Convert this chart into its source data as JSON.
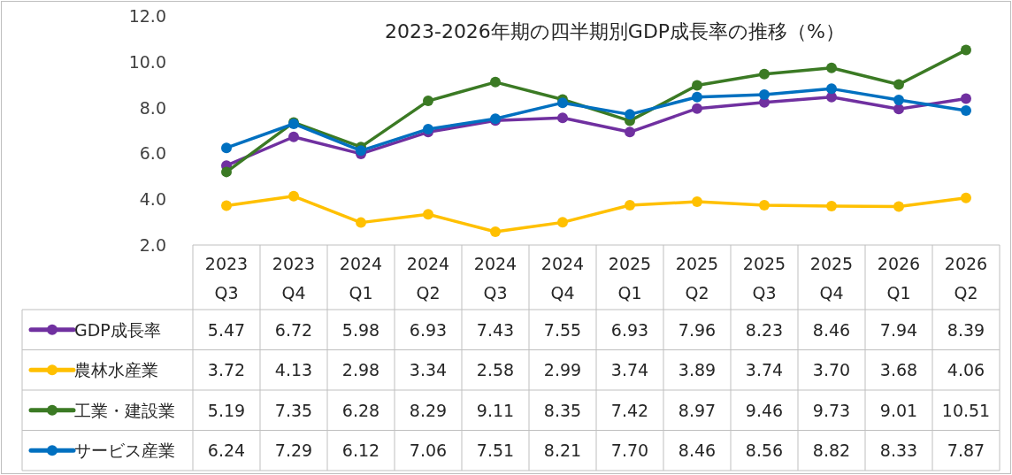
{
  "chart_data": {
    "type": "line",
    "title": "2023-2026年期の四半期別GDP成長率の推移（%）",
    "categories": [
      "2023 Q3",
      "2023 Q4",
      "2024 Q1",
      "2024 Q2",
      "2024 Q3",
      "2024 Q4",
      "2025 Q1",
      "2025 Q2",
      "2025 Q3",
      "2025 Q4",
      "2026 Q1",
      "2026 Q2"
    ],
    "ylim": [
      2,
      12
    ],
    "yticks": [
      {
        "value": 2,
        "label": "2.0"
      },
      {
        "value": 4,
        "label": "4.0"
      },
      {
        "value": 6,
        "label": "6.0"
      },
      {
        "value": 8,
        "label": "8.0"
      },
      {
        "value": 10,
        "label": "10.0"
      },
      {
        "value": 12,
        "label": "12.0"
      }
    ],
    "grid": false,
    "marker": "circle",
    "line_style": "solid",
    "legend": "bottom left",
    "series": [
      {
        "name": "GDP成長率",
        "color": "#7030a0",
        "values": [
          5.47,
          6.72,
          5.98,
          6.93,
          7.43,
          7.55,
          6.93,
          7.96,
          8.23,
          8.46,
          7.94,
          8.39
        ],
        "value_labels": [
          "5.47",
          "6.72",
          "5.98",
          "6.93",
          "7.43",
          "7.55",
          "6.93",
          "7.96",
          "8.23",
          "8.46",
          "7.94",
          "8.39"
        ]
      },
      {
        "name": "農林水産業",
        "color": "#ffc000",
        "values": [
          3.72,
          4.13,
          2.98,
          3.34,
          2.58,
          2.99,
          3.74,
          3.89,
          3.74,
          3.7,
          3.68,
          4.06
        ],
        "value_labels": [
          "3.72",
          "4.13",
          "2.98",
          "3.34",
          "2.58",
          "2.99",
          "3.74",
          "3.89",
          "3.74",
          "3.70",
          "3.68",
          "4.06"
        ]
      },
      {
        "name": "工業・建設業",
        "color": "#3b7a24",
        "values": [
          5.19,
          7.35,
          6.28,
          8.29,
          9.11,
          8.35,
          7.42,
          8.97,
          9.46,
          9.73,
          9.01,
          10.51
        ],
        "value_labels": [
          "5.19",
          "7.35",
          "6.28",
          "8.29",
          "9.11",
          "8.35",
          "7.42",
          "8.97",
          "9.46",
          "9.73",
          "9.01",
          "10.51"
        ]
      },
      {
        "name": "サービス産業",
        "color": "#0070c0",
        "values": [
          6.24,
          7.29,
          6.12,
          7.06,
          7.51,
          8.21,
          7.7,
          8.46,
          8.56,
          8.82,
          8.33,
          7.87
        ],
        "value_labels": [
          "6.24",
          "7.29",
          "6.12",
          "7.06",
          "7.51",
          "8.21",
          "7.70",
          "8.46",
          "8.56",
          "8.82",
          "8.33",
          "7.87"
        ]
      }
    ]
  }
}
